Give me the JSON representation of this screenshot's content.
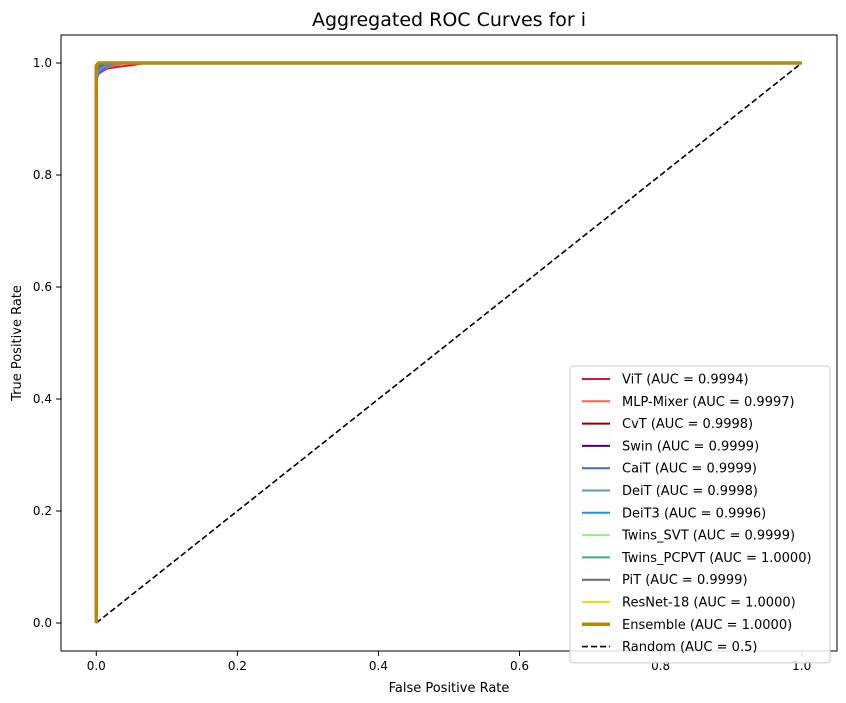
{
  "chart_data": {
    "type": "line",
    "title": "Aggregated ROC Curves for i",
    "xlabel": "False Positive Rate",
    "ylabel": "True Positive Rate",
    "xlim": [
      -0.05,
      1.05
    ],
    "ylim": [
      -0.05,
      1.05
    ],
    "xticks": [
      0.0,
      0.2,
      0.4,
      0.6,
      0.8,
      1.0
    ],
    "yticks": [
      0.0,
      0.2,
      0.4,
      0.6,
      0.8,
      1.0
    ],
    "xtick_labels": [
      "0.0",
      "0.2",
      "0.4",
      "0.6",
      "0.8",
      "1.0"
    ],
    "ytick_labels": [
      "0.0",
      "0.2",
      "0.4",
      "0.6",
      "0.8",
      "1.0"
    ],
    "grid": false,
    "legend_position": "lower-right",
    "series": [
      {
        "name": "ViT",
        "legend": "ViT (AUC = 0.9994)",
        "color": "#dc143c",
        "auc": 0.9994,
        "x": [
          0,
          0,
          0.003,
          0.008,
          0.015,
          0.03,
          0.05,
          0.07,
          1.0
        ],
        "y": [
          0,
          0.975,
          0.98,
          0.985,
          0.99,
          0.993,
          0.996,
          1.0,
          1.0
        ]
      },
      {
        "name": "MLP-Mixer",
        "legend": "MLP-Mixer (AUC = 0.9997)",
        "color": "#ff6347",
        "auc": 0.9997,
        "x": [
          0,
          0,
          0.004,
          0.01,
          0.02,
          0.04,
          1.0
        ],
        "y": [
          0,
          0.98,
          0.985,
          0.99,
          0.994,
          1.0,
          1.0
        ]
      },
      {
        "name": "CvT",
        "legend": "CvT (AUC = 0.9998)",
        "color": "#8b0000",
        "auc": 0.9998,
        "x": [
          0,
          0,
          0.005,
          0.015,
          0.03,
          1.0
        ],
        "y": [
          0,
          0.985,
          0.99,
          0.995,
          1.0,
          1.0
        ]
      },
      {
        "name": "Swin",
        "legend": "Swin (AUC = 0.9999)",
        "color": "#4b0082",
        "auc": 0.9999,
        "x": [
          0,
          0,
          0.005,
          0.015,
          1.0
        ],
        "y": [
          0,
          0.99,
          0.995,
          1.0,
          1.0
        ]
      },
      {
        "name": "CaiT",
        "legend": "CaiT (AUC = 0.9999)",
        "color": "#4169e1",
        "auc": 0.9999,
        "x": [
          0,
          0,
          0.006,
          0.015,
          1.0
        ],
        "y": [
          0,
          0.985,
          0.993,
          1.0,
          1.0
        ]
      },
      {
        "name": "DeiT",
        "legend": "DeiT (AUC = 0.9998)",
        "color": "#5f9ea0",
        "auc": 0.9998,
        "x": [
          0,
          0,
          0.006,
          0.02,
          1.0
        ],
        "y": [
          0,
          0.98,
          0.99,
          1.0,
          1.0
        ]
      },
      {
        "name": "DeiT3",
        "legend": "DeiT3 (AUC = 0.9996)",
        "color": "#1e90ff",
        "auc": 0.9996,
        "x": [
          0,
          0,
          0.005,
          0.012,
          0.03,
          1.0
        ],
        "y": [
          0,
          0.97,
          0.985,
          0.992,
          1.0,
          1.0
        ]
      },
      {
        "name": "Twins_SVT",
        "legend": "Twins_SVT (AUC = 0.9999)",
        "color": "#90ee90",
        "auc": 0.9999,
        "x": [
          0,
          0,
          0.004,
          0.01,
          1.0
        ],
        "y": [
          0,
          0.99,
          0.996,
          1.0,
          1.0
        ]
      },
      {
        "name": "Twins_PCPVT",
        "legend": "Twins_PCPVT (AUC = 1.0000)",
        "color": "#3cb371",
        "auc": 1.0,
        "x": [
          0,
          0,
          0.003,
          1.0
        ],
        "y": [
          0,
          0.995,
          1.0,
          1.0
        ]
      },
      {
        "name": "PiT",
        "legend": "PiT (AUC = 0.9999)",
        "color": "#696969",
        "auc": 0.9999,
        "x": [
          0,
          0,
          0.004,
          0.01,
          1.0
        ],
        "y": [
          0,
          0.99,
          0.995,
          1.0,
          1.0
        ]
      },
      {
        "name": "ResNet-18",
        "legend": "ResNet-18 (AUC = 1.0000)",
        "color": "#ffd700",
        "auc": 1.0,
        "x": [
          0,
          0,
          0.003,
          1.0
        ],
        "y": [
          0,
          0.995,
          1.0,
          1.0
        ]
      },
      {
        "name": "Ensemble",
        "legend": "Ensemble (AUC = 1.0000)",
        "color": "#b8860b",
        "auc": 1.0,
        "x": [
          0,
          0,
          0.003,
          1.0
        ],
        "y": [
          0,
          0.995,
          1.0,
          1.0
        ],
        "thick": true
      },
      {
        "name": "Random",
        "legend": "Random (AUC = 0.5)",
        "color": "#000000",
        "auc": 0.5,
        "x": [
          0,
          1
        ],
        "y": [
          0,
          1
        ],
        "dashed": true
      }
    ]
  }
}
